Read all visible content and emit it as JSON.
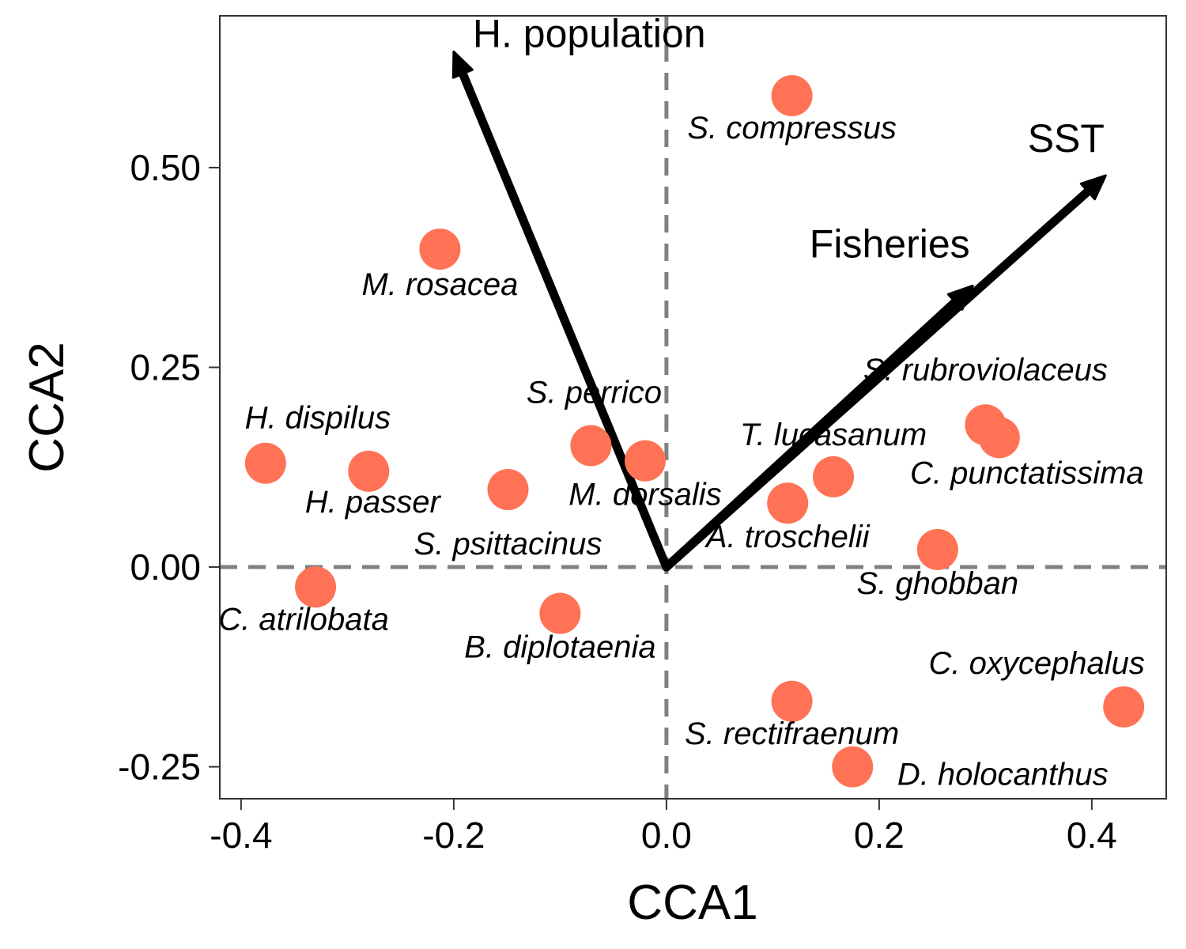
{
  "chart_data": {
    "type": "scatter",
    "xlabel": "CCA1",
    "ylabel": "CCA2",
    "xlim": [
      -0.42,
      0.47
    ],
    "ylim": [
      -0.29,
      0.69
    ],
    "x_ticks": [
      -0.4,
      -0.2,
      0.0,
      0.2,
      0.4
    ],
    "x_tick_labels": [
      "-0.4",
      "-0.2",
      "0.0",
      "0.2",
      "0.4"
    ],
    "y_ticks": [
      -0.25,
      0.0,
      0.25,
      0.5
    ],
    "y_tick_labels": [
      "-0.25",
      "0.00",
      "0.25",
      "0.50"
    ],
    "grid": false,
    "reference_lines": [
      0,
      0
    ],
    "point_color": "#FF7256",
    "species": [
      {
        "label": "S. compressus",
        "x": 0.118,
        "y": 0.59
      },
      {
        "label": "M. rosacea",
        "x": -0.213,
        "y": 0.398
      },
      {
        "label": "H. dispilus",
        "x": -0.377,
        "y": 0.13
      },
      {
        "label": "H. passer",
        "x": -0.28,
        "y": 0.12
      },
      {
        "label": "S. psittacinus",
        "x": -0.149,
        "y": 0.097
      },
      {
        "label": "S. perrico",
        "x": -0.071,
        "y": 0.152
      },
      {
        "label": "M. dorsalis",
        "x": -0.02,
        "y": 0.133
      },
      {
        "label": "C. atrilobata",
        "x": -0.33,
        "y": -0.025
      },
      {
        "label": "B. diplotaenia",
        "x": -0.1,
        "y": -0.058
      },
      {
        "label": "T. lucasanum",
        "x": 0.157,
        "y": 0.113
      },
      {
        "label": "A. troschelii",
        "x": 0.114,
        "y": 0.08
      },
      {
        "label": "S. rubroviolaceus",
        "x": 0.3,
        "y": 0.178
      },
      {
        "label": "C. punctatissima",
        "x": 0.313,
        "y": 0.162
      },
      {
        "label": "S. ghobban",
        "x": 0.255,
        "y": 0.022
      },
      {
        "label": "C. oxycephalus",
        "x": 0.43,
        "y": -0.175
      },
      {
        "label": "S. rectifraenum",
        "x": 0.118,
        "y": -0.168
      },
      {
        "label": "D. holocanthus",
        "x": 0.175,
        "y": -0.25
      }
    ],
    "vectors": [
      {
        "label": "H. population",
        "x": -0.2,
        "y": 0.645
      },
      {
        "label": "SST",
        "x": 0.413,
        "y": 0.49
      },
      {
        "label": "Fisheries",
        "x": 0.288,
        "y": 0.352
      }
    ]
  }
}
